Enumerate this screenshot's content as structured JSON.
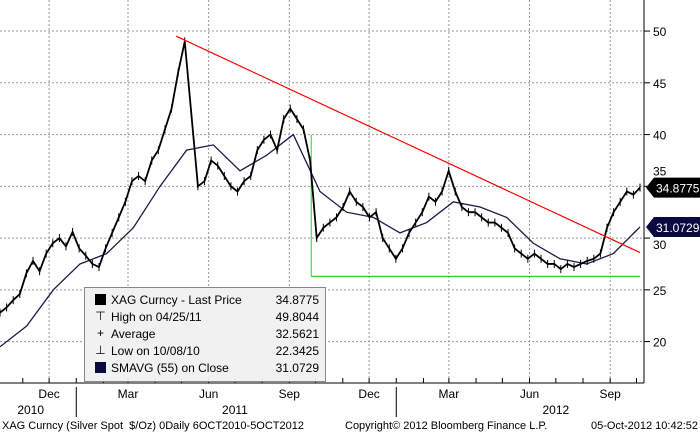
{
  "chart_data": {
    "type": "line",
    "x_range": [
      "2010-10-06",
      "2012-10-05"
    ],
    "ylim": [
      16,
      53
    ],
    "y_ticks": [
      20,
      25,
      30,
      35,
      40,
      45,
      50
    ],
    "month_ticks": [
      {
        "label": "Dec",
        "date": "2010-12-01"
      },
      {
        "label": "Mar",
        "date": "2011-03-01"
      },
      {
        "label": "Jun",
        "date": "2011-06-01"
      },
      {
        "label": "Sep",
        "date": "2011-09-01"
      },
      {
        "label": "Dec",
        "date": "2011-12-01"
      },
      {
        "label": "Mar",
        "date": "2012-03-01"
      },
      {
        "label": "Jun",
        "date": "2012-06-01"
      },
      {
        "label": "Sep",
        "date": "2012-09-01"
      }
    ],
    "year_labels": [
      {
        "label": "2010",
        "date": "2010-11-10"
      },
      {
        "label": "2011",
        "date": "2011-07-01"
      },
      {
        "label": "2012",
        "date": "2012-07-01"
      }
    ],
    "grid": true,
    "legend_placement": "bottom-left",
    "series": [
      {
        "name": "XAG Curncy - Last Price",
        "color": "#000000",
        "values": [
          22.8,
          23.3,
          24.0,
          24.6,
          26.6,
          27.8,
          26.8,
          28.5,
          29.5,
          30.0,
          29.2,
          30.6,
          29.0,
          28.3,
          27.5,
          27.2,
          29.0,
          30.5,
          32.0,
          33.5,
          35.5,
          36.0,
          35.5,
          37.5,
          38.5,
          40.5,
          42.5,
          46.0,
          49.0,
          42.0,
          35.0,
          35.5,
          37.5,
          37.0,
          36.0,
          35.0,
          34.5,
          35.5,
          36.0,
          38.5,
          39.5,
          40.0,
          38.5,
          41.5,
          42.5,
          41.5,
          40.5,
          37.5,
          30.0,
          31.0,
          31.5,
          32.0,
          33.0,
          34.5,
          33.5,
          33.0,
          32.0,
          32.5,
          30.0,
          29.0,
          28.0,
          29.0,
          30.5,
          31.5,
          32.5,
          34.0,
          33.5,
          34.5,
          36.5,
          34.5,
          33.0,
          32.5,
          32.5,
          32.0,
          31.5,
          31.5,
          31.0,
          30.5,
          29.0,
          28.5,
          28.0,
          28.5,
          28.0,
          27.5,
          27.5,
          27.0,
          27.5,
          27.2,
          27.5,
          27.8,
          28.0,
          28.5,
          31.0,
          32.5,
          33.5,
          34.5,
          34.2,
          34.8775
        ]
      },
      {
        "name": "SMAVG (55) on Close",
        "color": "#1a1a4a",
        "values": [
          19.5,
          21.5,
          25.0,
          27.5,
          28.5,
          31.0,
          35.0,
          38.5,
          39.0,
          36.5,
          38.0,
          40.0,
          34.5,
          32.5,
          32.0,
          30.5,
          31.5,
          33.5,
          33.0,
          32.0,
          29.5,
          28.0,
          27.5,
          28.5,
          31.0729
        ]
      }
    ],
    "annotations": {
      "trendline": {
        "color": "#ff0000",
        "from": [
          "2011-04-25",
          49.5
        ],
        "to": [
          "2012-10-05",
          28.6
        ]
      },
      "support": {
        "color": "#33cc33",
        "from": [
          "2011-09-26",
          26.3
        ],
        "to": [
          "2012-10-05",
          26.3
        ]
      },
      "last_price_tag": "34.8775",
      "sma_tag": "31.0729"
    }
  },
  "legend": {
    "items": [
      {
        "label": "XAG Curncy - Last Price",
        "value": "34.8775",
        "icon": "black-square-icon"
      },
      {
        "label": "High on 04/25/11",
        "value": "49.8044",
        "icon": "high-marker-icon"
      },
      {
        "label": "Average",
        "value": "32.5621",
        "icon": "average-marker-icon"
      },
      {
        "label": "Low on 10/08/10",
        "value": "22.3425",
        "icon": "low-marker-icon"
      },
      {
        "label": "SMAVG (55) on Close",
        "value": "31.0729",
        "icon": "navy-square-icon"
      }
    ]
  },
  "footer": {
    "left": "XAG Curncy (Silver Spot  $/Oz) 0Daily 6OCT2010-5OCT2012",
    "center": "Copyright© 2012 Bloomberg Finance L.P.",
    "right": "05-Oct-2012 10:42:52"
  }
}
